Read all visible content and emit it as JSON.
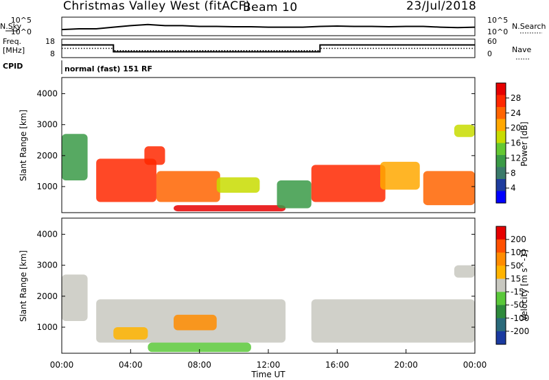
{
  "header": {
    "station": "Christmas Valley West (fitACF)",
    "beam": "Beam 10",
    "date": "23/Jul/2018"
  },
  "mode_label": "normal (fast) 151 RF",
  "panel_labels": {
    "nsky": "N.Sky",
    "freq_line1": "Freq.",
    "freq_line2": "[MHz]",
    "cpid": "CPID",
    "nsearch": "N.Search",
    "nave": "Nave"
  },
  "colors": {
    "power_scale": [
      "#0000ff",
      "#1e3c9e",
      "#3a7a6a",
      "#3a9a46",
      "#64c832",
      "#c8dc00",
      "#ffa800",
      "#ff6400",
      "#ff2800",
      "#e60000"
    ],
    "velocity_scale": [
      "#1a3aa0",
      "#2a6a7a",
      "#2e8a3c",
      "#5ac83a",
      "#c8c8c0",
      "#ffb400",
      "#ff8c00",
      "#ff5000",
      "#e60000"
    ],
    "background": "#ffffff"
  },
  "chart_data": [
    {
      "type": "line",
      "panel": "noise",
      "ylabel": "N.Sky",
      "y2label": "N.Search",
      "yticks": [
        "10^5",
        "10^0"
      ],
      "y2ticks": [
        "10^5",
        "10^0"
      ],
      "x": [
        "00:00",
        "01:00",
        "02:00",
        "03:00",
        "04:00",
        "05:00",
        "06:00",
        "07:00",
        "08:00",
        "09:00",
        "10:00",
        "11:00",
        "12:00",
        "13:00",
        "14:00",
        "15:00",
        "16:00",
        "17:00",
        "18:00",
        "19:00",
        "20:00",
        "21:00",
        "22:00",
        "23:00",
        "24:00"
      ],
      "series": [
        {
          "values": [
            0.3,
            0.35,
            0.35,
            0.45,
            0.55,
            0.62,
            0.55,
            0.55,
            0.5,
            0.5,
            0.48,
            0.48,
            0.45,
            0.45,
            0.45,
            0.5,
            0.52,
            0.5,
            0.5,
            0.48,
            0.5,
            0.5,
            0.45,
            0.42,
            0.45
          ]
        }
      ]
    },
    {
      "type": "line",
      "panel": "frequency",
      "ylabel": "Freq. [MHz]",
      "y2label": "Nave",
      "yticks": [
        "18",
        "8"
      ],
      "y2ticks": [
        "60",
        "0"
      ],
      "ylim": [
        8,
        18
      ],
      "y2lim": [
        0,
        60
      ],
      "series": [
        {
          "x": [
            0,
            3,
            3,
            15,
            15,
            24
          ],
          "values": [
            15,
            15,
            11,
            11,
            15,
            15
          ]
        },
        {
          "x": [
            0,
            3,
            3,
            15,
            15,
            24
          ],
          "values": [
            30,
            30,
            22,
            22,
            30,
            30
          ],
          "axis": "nave"
        }
      ]
    },
    {
      "type": "heatmap",
      "panel": "power",
      "xlabel": "",
      "ylabel": "Slant Range [km]",
      "colorbar_label": "Power [dB]",
      "colorbar_ticks": [
        "28",
        "24",
        "20",
        "16",
        "12",
        "8",
        "4"
      ],
      "yticks": [
        "4000",
        "3000",
        "2000",
        "1000"
      ],
      "ylim": [
        180,
        4500
      ],
      "xlim": [
        0,
        24
      ],
      "regions": [
        {
          "x": [
            2.0,
            5.5
          ],
          "y": [
            500,
            1900
          ],
          "level": 8
        },
        {
          "x": [
            4.8,
            6.0
          ],
          "y": [
            1700,
            2300
          ],
          "level": 8
        },
        {
          "x": [
            5.5,
            9.2
          ],
          "y": [
            500,
            1500
          ],
          "level": 7
        },
        {
          "x": [
            6.5,
            13.0
          ],
          "y": [
            200,
            400
          ],
          "level": 9
        },
        {
          "x": [
            9.0,
            11.5
          ],
          "y": [
            800,
            1300
          ],
          "level": 5
        },
        {
          "x": [
            12.5,
            14.5
          ],
          "y": [
            300,
            1200
          ],
          "level": 3
        },
        {
          "x": [
            14.5,
            18.8
          ],
          "y": [
            500,
            1700
          ],
          "level": 8
        },
        {
          "x": [
            18.5,
            20.8
          ],
          "y": [
            900,
            1800
          ],
          "level": 6
        },
        {
          "x": [
            21.0,
            24.0
          ],
          "y": [
            400,
            1500
          ],
          "level": 7
        },
        {
          "x": [
            22.8,
            24.0
          ],
          "y": [
            2600,
            3000
          ],
          "level": 5
        },
        {
          "x": [
            0.0,
            1.5
          ],
          "y": [
            1200,
            2700
          ],
          "level": 3
        }
      ]
    },
    {
      "type": "heatmap",
      "panel": "velocity",
      "xlabel": "Time UT",
      "ylabel": "Slant Range [km]",
      "colorbar_label": "Velocity [m s^-1]",
      "colorbar_ticks": [
        "200",
        "100",
        "50",
        "15",
        "-15",
        "-50",
        "-100",
        "-200"
      ],
      "yticks": [
        "4000",
        "3000",
        "2000",
        "1000"
      ],
      "xticks": [
        "00:00",
        "04:00",
        "08:00",
        "12:00",
        "16:00",
        "20:00",
        "00:00"
      ],
      "ylim": [
        180,
        4500
      ],
      "xlim": [
        0,
        24
      ],
      "regions": [
        {
          "x": [
            2.0,
            13.0
          ],
          "y": [
            500,
            1900
          ],
          "level": 4
        },
        {
          "x": [
            6.5,
            9.0
          ],
          "y": [
            900,
            1400
          ],
          "level": 6
        },
        {
          "x": [
            3.0,
            5.0
          ],
          "y": [
            600,
            1000
          ],
          "level": 5
        },
        {
          "x": [
            5.0,
            11.0
          ],
          "y": [
            200,
            500
          ],
          "level": 3
        },
        {
          "x": [
            14.5,
            24.0
          ],
          "y": [
            500,
            1900
          ],
          "level": 4
        },
        {
          "x": [
            0.0,
            1.5
          ],
          "y": [
            1200,
            2700
          ],
          "level": 4
        },
        {
          "x": [
            22.8,
            24.0
          ],
          "y": [
            2600,
            3000
          ],
          "level": 4
        }
      ]
    }
  ]
}
